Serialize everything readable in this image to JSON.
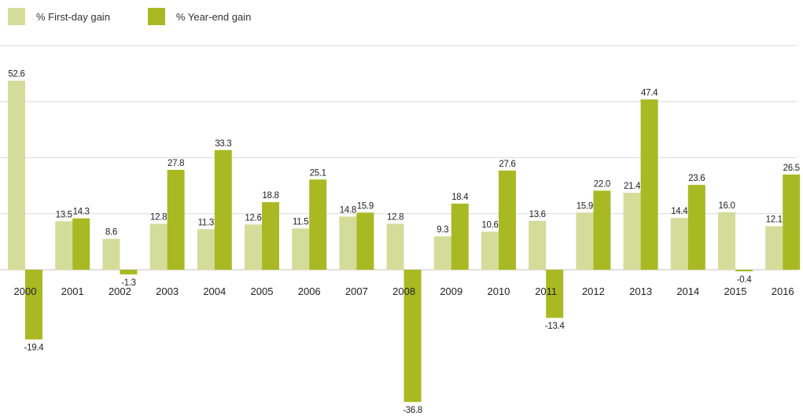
{
  "chart_data": {
    "type": "bar",
    "categories": [
      "2000",
      "2001",
      "2002",
      "2003",
      "2004",
      "2005",
      "2006",
      "2007",
      "2008",
      "2009",
      "2010",
      "2011",
      "2012",
      "2013",
      "2014",
      "2015",
      "2016"
    ],
    "series": [
      {
        "name": "% First-day gain",
        "color": "#d4dc9a",
        "values": [
          52.6,
          13.5,
          8.6,
          12.8,
          11.3,
          12.6,
          11.5,
          14.8,
          12.8,
          9.3,
          10.6,
          13.6,
          15.9,
          21.4,
          14.4,
          16.0,
          12.1
        ]
      },
      {
        "name": "% Year-end gain",
        "color": "#a9b923",
        "values": [
          -19.4,
          14.3,
          -1.3,
          27.8,
          33.3,
          18.8,
          25.1,
          15.9,
          -36.8,
          18.4,
          27.6,
          -13.4,
          22.0,
          47.4,
          23.6,
          -0.4,
          26.5
        ]
      }
    ],
    "ylim": [
      -40,
      60
    ],
    "yticks": [
      0,
      15.6,
      31.2,
      46.8,
      62.4
    ],
    "grid": true,
    "legend_position": "top-left"
  }
}
